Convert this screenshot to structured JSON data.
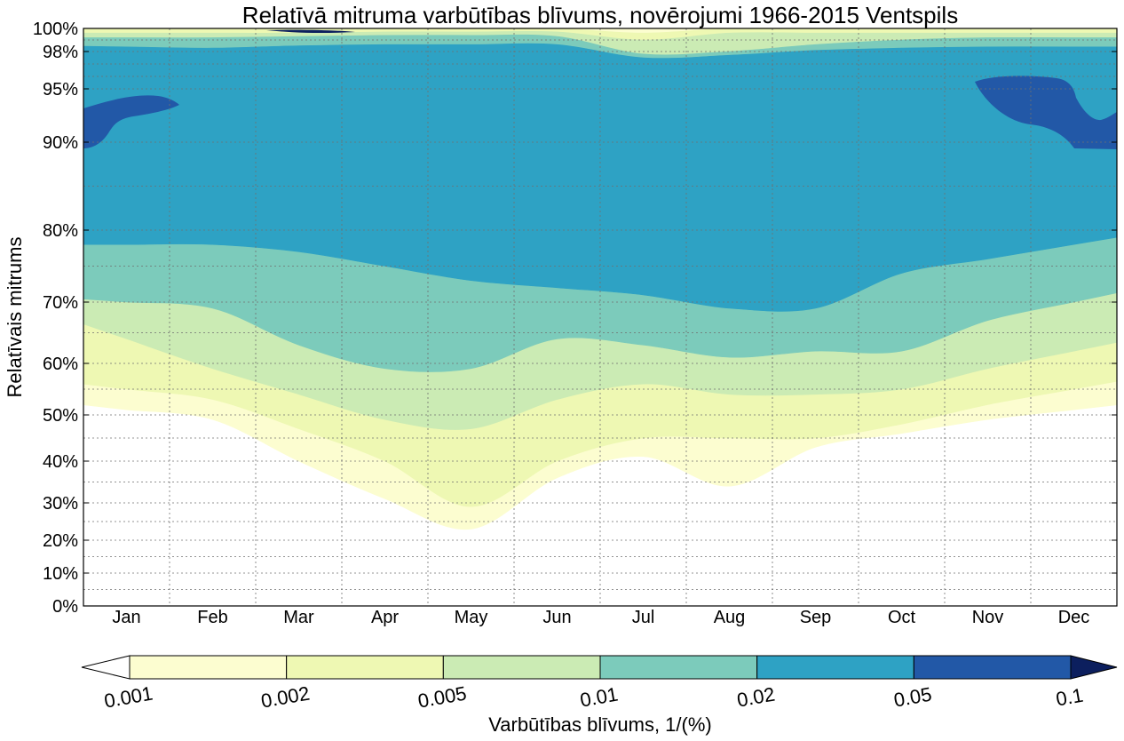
{
  "chart_data": {
    "type": "contourf",
    "title": "Relatīvā mitruma varbūtības blīvums, novērojumi 1966-2015 Ventspils",
    "xlabel": "",
    "ylabel": "Relatīvais mitrums",
    "x_ticks": [
      "Jan",
      "Feb",
      "Mar",
      "Apr",
      "May",
      "Jun",
      "Jul",
      "Aug",
      "Sep",
      "Oct",
      "Nov",
      "Dec"
    ],
    "y_tick_labels": [
      "0%",
      "10%",
      "20%",
      "30%",
      "40%",
      "50%",
      "60%",
      "70%",
      "80%",
      "90%",
      "95%",
      "98%",
      "100%"
    ],
    "y_tick_values": [
      0,
      10,
      20,
      30,
      40,
      50,
      60,
      70,
      80,
      90,
      95,
      98,
      100
    ],
    "y_scale": "logit-like (stretched toward 100%)",
    "ylim": [
      0,
      100
    ],
    "grid": true,
    "colorbar": {
      "label": "Varbūtības blīvums, 1/(%)",
      "tick_labels": [
        "0.001",
        "0.002",
        "0.005",
        "0.01",
        "0.02",
        "0.05",
        "0.1"
      ],
      "levels": [
        0.001,
        0.002,
        0.005,
        0.01,
        0.02,
        0.05,
        0.1
      ],
      "colors": [
        "#ffffff",
        "#fcfdd0",
        "#eef8b3",
        "#cbebb4",
        "#7ccbbb",
        "#2ea2c4",
        "#2258a7",
        "#0c1f5e"
      ],
      "extend": "both",
      "placement": "bottom"
    },
    "series": [
      {
        "level": 0.001,
        "lower": [
          51,
          49,
          40,
          31,
          23,
          36,
          41,
          34,
          43,
          46,
          49,
          51
        ],
        "upper": [
          100,
          100,
          100,
          100,
          100,
          100,
          100,
          100,
          100,
          100,
          100,
          100
        ]
      },
      {
        "level": 0.002,
        "lower": [
          55,
          53,
          47,
          40,
          29,
          40,
          45,
          45,
          45,
          48,
          52,
          55
        ],
        "upper": [
          100,
          100,
          100,
          100,
          100,
          100,
          99.6,
          100,
          100,
          100,
          100,
          100
        ]
      },
      {
        "level": 0.005,
        "lower": [
          64,
          59,
          54,
          49,
          47,
          53,
          56,
          54,
          54,
          55,
          59,
          62
        ],
        "upper": [
          99.6,
          99.6,
          99.6,
          99.7,
          99.7,
          99.7,
          99.0,
          99.6,
          99.6,
          99.6,
          99.6,
          99.6
        ]
      },
      {
        "level": 0.01,
        "lower": [
          70,
          69,
          63,
          59,
          59,
          64,
          63,
          61,
          62,
          62,
          67,
          70
        ],
        "upper": [
          99.2,
          99.2,
          99.3,
          99.4,
          99.4,
          99.3,
          97.8,
          98.0,
          98.6,
          99.0,
          99.2,
          99.2
        ]
      },
      {
        "level": 0.02,
        "lower": [
          78,
          78,
          77,
          75,
          73,
          72,
          71,
          69,
          69,
          74,
          76,
          78
        ],
        "upper": [
          98.4,
          98.3,
          98.5,
          98.6,
          98.6,
          98.6,
          97.5,
          97.7,
          98.1,
          98.3,
          98.4,
          98.4
        ]
      }
    ]
  }
}
